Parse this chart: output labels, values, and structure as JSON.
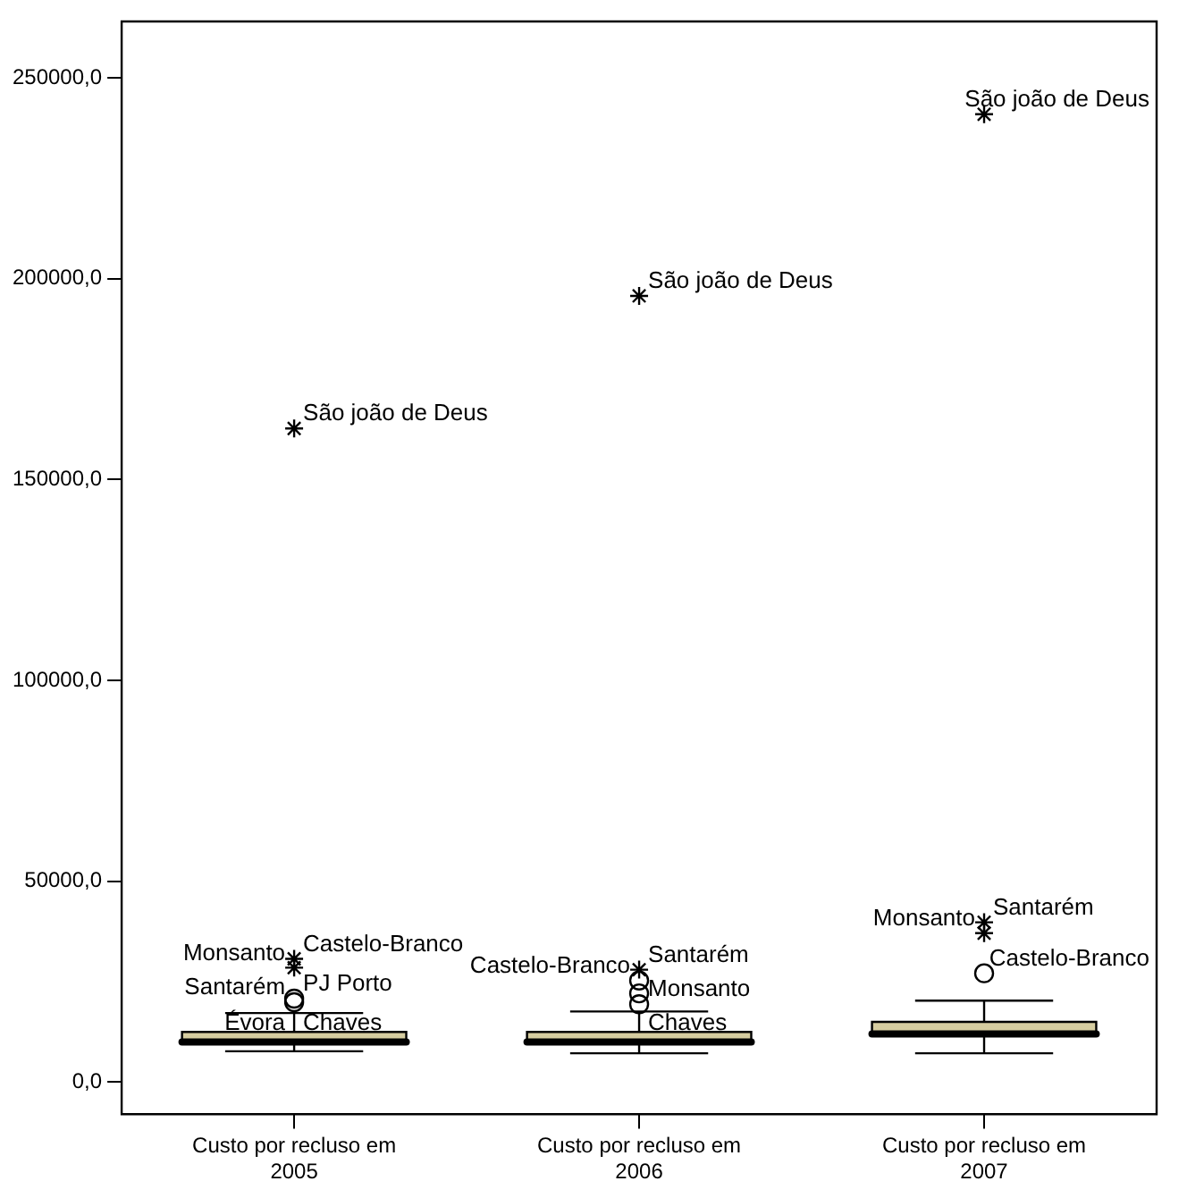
{
  "chart_data": {
    "type": "box",
    "categories": [
      "Custo por recluso em 2005",
      "Custo por recluso em 2006",
      "Custo por recluso em 2007"
    ],
    "ylim": [
      -8000,
      264000
    ],
    "yticks": [
      {
        "value": 0,
        "label": "0,0"
      },
      {
        "value": 50000,
        "label": "50000,0"
      },
      {
        "value": 100000,
        "label": "100000,0"
      },
      {
        "value": 150000,
        "label": "150000,0"
      },
      {
        "value": 200000,
        "label": "200000,0"
      },
      {
        "value": 250000,
        "label": "250000,0"
      }
    ],
    "grid": false,
    "legend": false,
    "series": [
      {
        "type": "box",
        "color": "#d6cda0",
        "boxes": [
          {
            "low": 7700,
            "q1": 9500,
            "median": 10000,
            "q3": 12500,
            "high": 17200
          },
          {
            "low": 7200,
            "q1": 9500,
            "median": 10000,
            "q3": 12500,
            "high": 17600
          },
          {
            "low": 7200,
            "q1": 11500,
            "median": 12000,
            "q3": 15000,
            "high": 20300
          }
        ]
      },
      {
        "type": "scatter",
        "marker": "circle",
        "color": "#000000",
        "x": [
          "Custo por recluso em 2005",
          "Custo por recluso em 2005",
          "Custo por recluso em 2006",
          "Custo por recluso em 2006",
          "Custo por recluso em 2006",
          "Custo por recluso em 2007"
        ],
        "values": [
          20800,
          19900,
          25300,
          22100,
          19400,
          27100
        ]
      },
      {
        "type": "scatter",
        "marker": "cross",
        "color": "#000000",
        "x": [
          "Custo por recluso em 2005",
          "Custo por recluso em 2005",
          "Custo por recluso em 2005",
          "Custo por recluso em 2006",
          "Custo por recluso em 2006",
          "Custo por recluso em 2007",
          "Custo por recluso em 2007",
          "Custo por recluso em 2007"
        ],
        "values": [
          162700,
          30700,
          28500,
          195700,
          28000,
          240900,
          39800,
          37100
        ]
      }
    ],
    "annotations": [
      {
        "text": "São joão de Deus",
        "x": "Custo por recluso em 2005",
        "y": 162700
      },
      {
        "text": "Castelo-Branco",
        "x": "Custo por recluso em 2005",
        "y": 30700
      },
      {
        "text": "Monsanto",
        "x": "Custo por recluso em 2005",
        "y": 28500
      },
      {
        "text": "PJ Porto",
        "x": "Custo por recluso em 2005",
        "y": 20800
      },
      {
        "text": "Santarém",
        "x": "Custo por recluso em 2005",
        "y": 19900
      },
      {
        "text": "Chaves",
        "x": "Custo por recluso em 2005",
        "y": 11000
      },
      {
        "text": "Évora",
        "x": "Custo por recluso em 2005",
        "y": 11000
      },
      {
        "text": "São joão de Deus",
        "x": "Custo por recluso em 2006",
        "y": 195700
      },
      {
        "text": "Santarém",
        "x": "Custo por recluso em 2006",
        "y": 28000
      },
      {
        "text": "Castelo-Branco",
        "x": "Custo por recluso em 2006",
        "y": 25300
      },
      {
        "text": "Monsanto",
        "x": "Custo por recluso em 2006",
        "y": 19400
      },
      {
        "text": "Chaves",
        "x": "Custo por recluso em 2006",
        "y": 11000
      },
      {
        "text": "São joão de Deus",
        "x": "Custo por recluso em 2007",
        "y": 240900
      },
      {
        "text": "Santarém",
        "x": "Custo por recluso em 2007",
        "y": 39800
      },
      {
        "text": "Monsanto",
        "x": "Custo por recluso em 2007",
        "y": 37100
      },
      {
        "text": "Castelo-Branco",
        "x": "Custo por recluso em 2007",
        "y": 27100
      }
    ]
  }
}
